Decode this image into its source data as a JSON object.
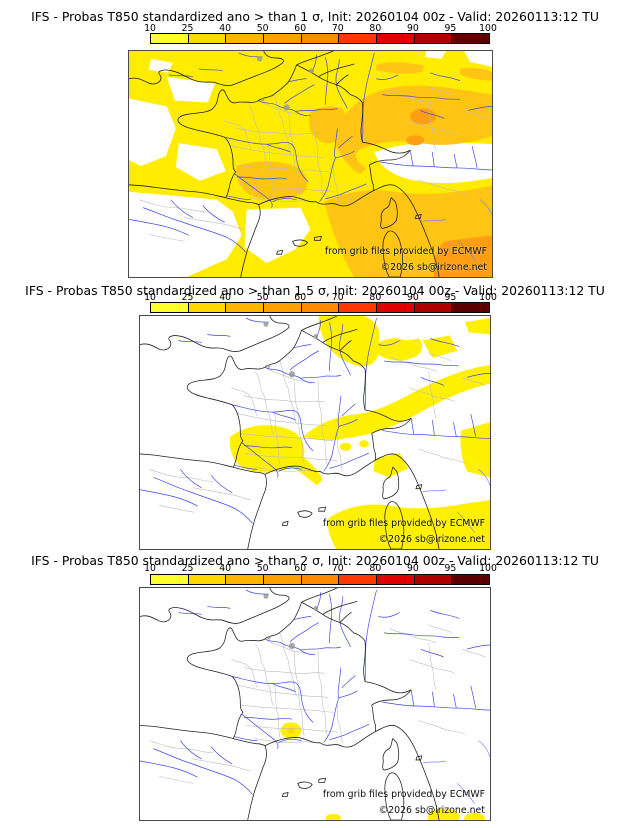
{
  "page": {
    "background": "#FFFFFF"
  },
  "colorbar": {
    "tick_labels": [
      "10",
      "25",
      "40",
      "50",
      "60",
      "70",
      "80",
      "90",
      "95",
      "100"
    ],
    "segment_colors": [
      "#FFFF2E",
      "#FFD800",
      "#FFB400",
      "#FFA100",
      "#FF8A00",
      "#FF3800",
      "#E00000",
      "#AE0000",
      "#5C0000"
    ]
  },
  "attribution": {
    "provider": "from grib files provided by ECMWF",
    "copyright": "©2026 sb@irizone.net"
  },
  "panels": [
    {
      "sigma_threshold": "1",
      "title": "IFS - Probas T850  standardized ano > than 1 σ, Init: 20260104 00z - Valid: 20260113:12 TU"
    },
    {
      "sigma_threshold": "1.5",
      "title": "IFS - Probas T850  standardized ano > than 1.5 σ, Init: 20260104 00z - Valid: 20260113:12 TU"
    },
    {
      "sigma_threshold": "2",
      "title": "IFS - Probas T850  standardized ano > than 2 σ, Init: 20260104 00z - Valid: 20260113:12 TU"
    }
  ],
  "map_colors": {
    "prob_low_yellow": "#FFEC00",
    "prob_patch_yellow": "#FFF000",
    "prob_mid_orange": "#FFC414",
    "prob_high_orange": "#FF9E12",
    "river_blue": "#3A46E8",
    "river_light_blue": "#7B86F2",
    "department_border_gray": "#BDBDBD",
    "coast_border_black": "#222222",
    "sea_white": "#FFFFFF"
  }
}
